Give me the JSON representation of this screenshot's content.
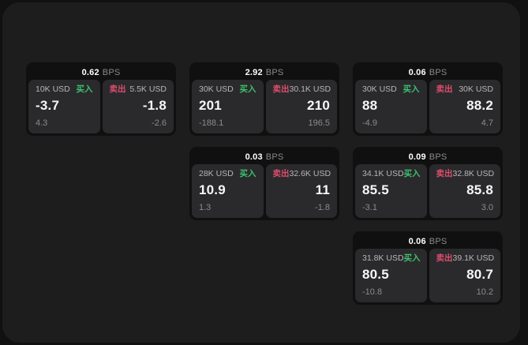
{
  "labels": {
    "bps_unit": "BPS",
    "buy": "买入",
    "sell": "卖出"
  },
  "colors": {
    "buy-color": "#3dc06e",
    "sell-color": "#dd4d6d"
  },
  "cards": [
    {
      "bps": "0.62",
      "buy": {
        "amount": "10K USD",
        "value": "-3.7",
        "delta": "4.3"
      },
      "sell": {
        "amount": "5.5K USD",
        "value": "-1.8",
        "delta": "-2.6"
      }
    },
    {
      "bps": "2.92",
      "buy": {
        "amount": "30K USD",
        "value": "201",
        "delta": "-188.1"
      },
      "sell": {
        "amount": "30.1K USD",
        "value": "210",
        "delta": "196.5"
      }
    },
    {
      "bps": "0.06",
      "buy": {
        "amount": "30K USD",
        "value": "88",
        "delta": "-4.9"
      },
      "sell": {
        "amount": "30K USD",
        "value": "88.2",
        "delta": "4.7"
      }
    },
    {
      "bps": "0.03",
      "buy": {
        "amount": "28K USD",
        "value": "10.9",
        "delta": "1.3"
      },
      "sell": {
        "amount": "32.6K USD",
        "value": "11",
        "delta": "-1.8"
      }
    },
    {
      "bps": "0.09",
      "buy": {
        "amount": "34.1K USD",
        "value": "85.5",
        "delta": "-3.1"
      },
      "sell": {
        "amount": "32.8K USD",
        "value": "85.8",
        "delta": "3.0"
      }
    },
    {
      "bps": "0.06",
      "buy": {
        "amount": "31.8K USD",
        "value": "80.5",
        "delta": "-10.8"
      },
      "sell": {
        "amount": "39.1K USD",
        "value": "80.7",
        "delta": "10.2"
      }
    }
  ]
}
